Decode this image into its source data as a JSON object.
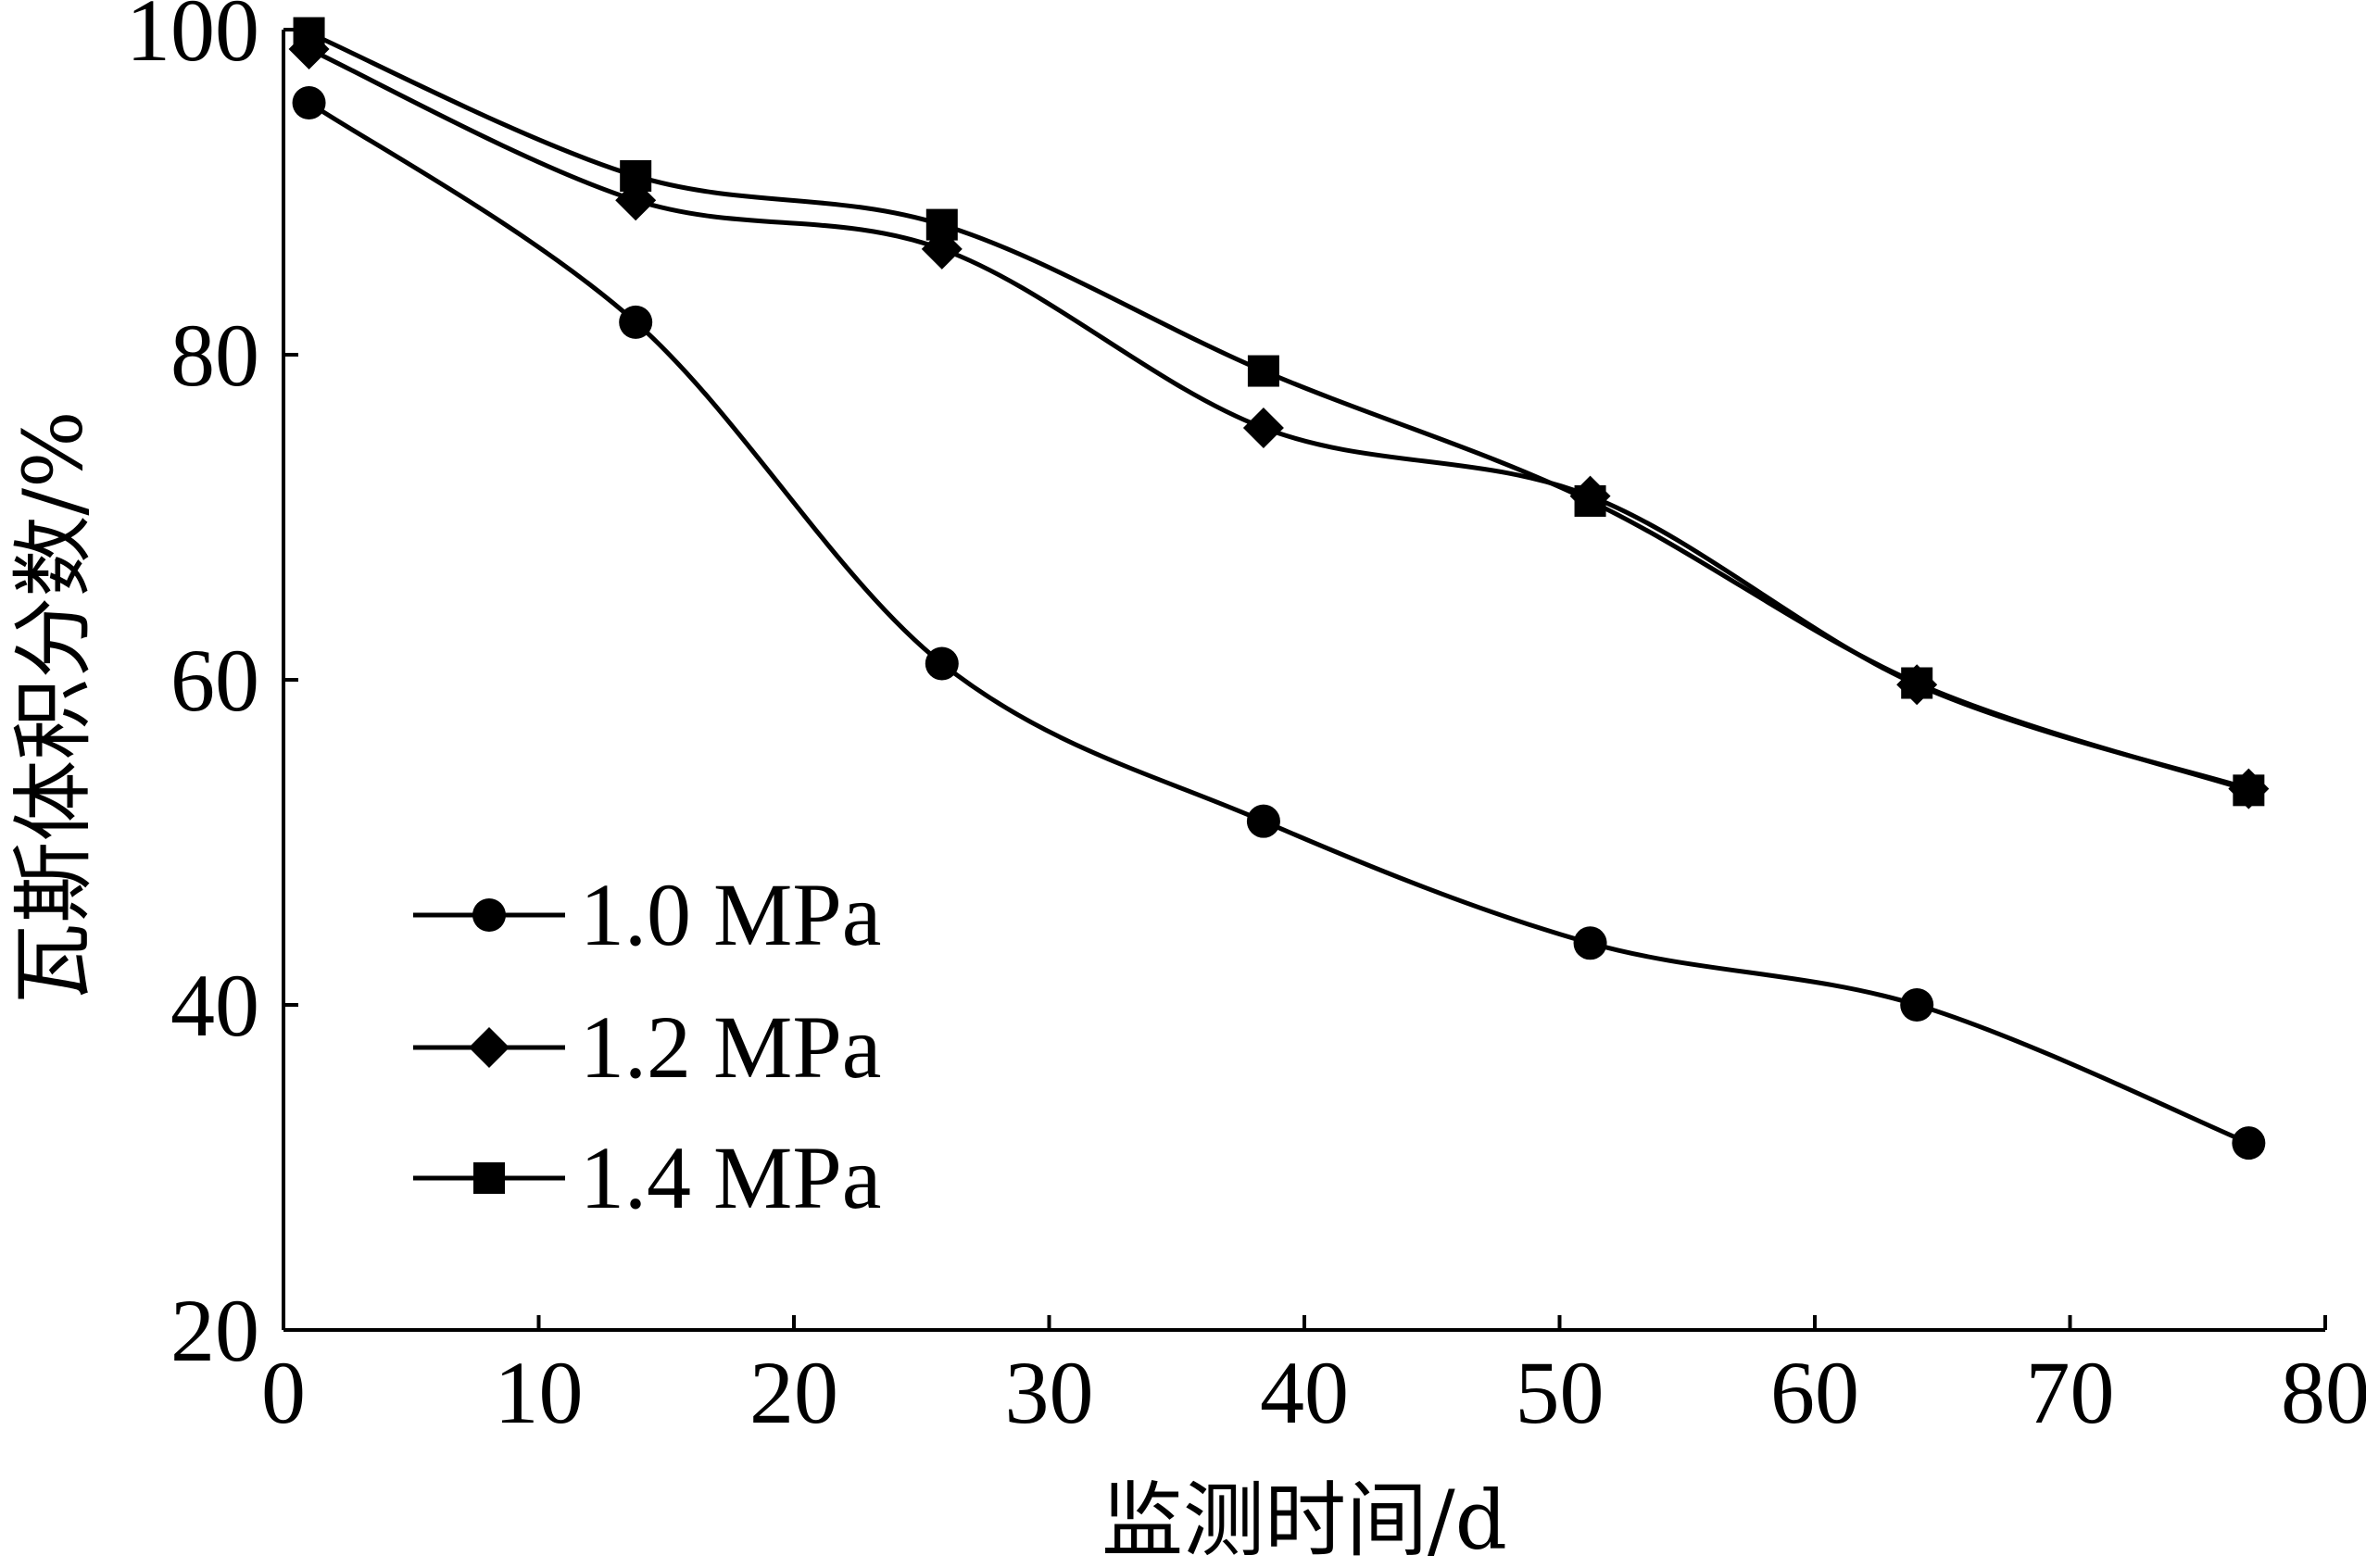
{
  "chart_data": {
    "type": "line",
    "xlabel": "监测时间/d",
    "ylabel": "瓦斯体积分数/%",
    "xlim": [
      0,
      80
    ],
    "ylim": [
      20,
      100
    ],
    "xticks": [
      0,
      10,
      20,
      30,
      40,
      50,
      60,
      70,
      80
    ],
    "yticks": [
      20,
      40,
      60,
      80,
      100
    ],
    "grid": false,
    "legend_position": "bottom-left",
    "line_color": "#000000",
    "series": [
      {
        "name": "1.0 MPa",
        "marker": "circle",
        "x": [
          1,
          13.8,
          25.8,
          38.4,
          51.2,
          64,
          77
        ],
        "y": [
          95.5,
          82,
          61,
          51.3,
          43.8,
          40,
          31.5
        ]
      },
      {
        "name": "1.2 MPa",
        "marker": "diamond",
        "x": [
          1,
          13.8,
          25.8,
          38.4,
          51.2,
          64,
          77
        ],
        "y": [
          98.8,
          89.5,
          86.5,
          75.5,
          71.3,
          59.7,
          53.3
        ]
      },
      {
        "name": "1.4 MPa",
        "marker": "square",
        "x": [
          1,
          13.8,
          25.8,
          38.4,
          51.2,
          64,
          77
        ],
        "y": [
          99.8,
          91,
          88,
          79,
          71,
          59.8,
          53.2
        ]
      }
    ]
  }
}
